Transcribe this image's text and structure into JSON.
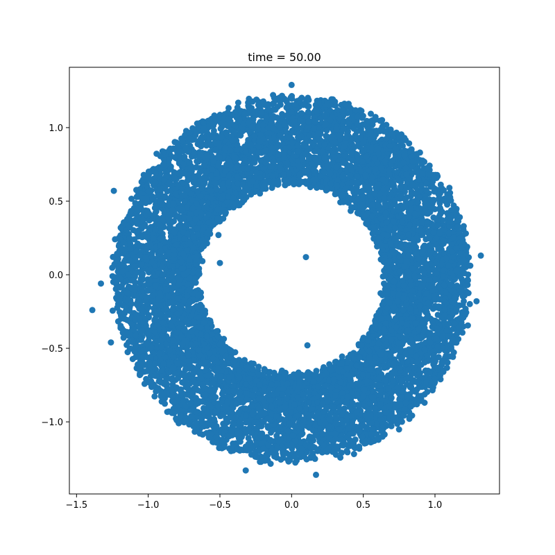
{
  "chart_data": {
    "type": "scatter",
    "title": "time = 50.00",
    "xlabel": "",
    "ylabel": "",
    "xlim": [
      -1.55,
      1.45
    ],
    "ylim": [
      -1.49,
      1.41
    ],
    "grid": false,
    "legend": "none",
    "point_color": "#1f77b4",
    "x_ticks": [
      {
        "value": -1.5,
        "label": "−1.5"
      },
      {
        "value": -1.0,
        "label": "−1.0"
      },
      {
        "value": -0.5,
        "label": "−0.5"
      },
      {
        "value": 0.0,
        "label": "0.0"
      },
      {
        "value": 0.5,
        "label": "0.5"
      },
      {
        "value": 1.0,
        "label": "1.0"
      }
    ],
    "y_ticks": [
      {
        "value": 1.0,
        "label": "1.0"
      },
      {
        "value": 0.5,
        "label": "0.5"
      },
      {
        "value": 0.0,
        "label": "0.0"
      },
      {
        "value": -0.5,
        "label": "−0.5"
      },
      {
        "value": -1.0,
        "label": "−1.0"
      }
    ],
    "distribution": {
      "shape": "annulus",
      "center": [
        0.0,
        -0.03
      ],
      "inner_radius": 0.65,
      "outer_radius": 1.24,
      "point_count": 9000
    },
    "outliers": [
      {
        "x": -1.39,
        "y": -0.24
      },
      {
        "x": -1.33,
        "y": -0.06
      },
      {
        "x": -1.24,
        "y": 0.57
      },
      {
        "x": -1.26,
        "y": -0.46
      },
      {
        "x": -0.32,
        "y": -1.33
      },
      {
        "x": 0.17,
        "y": -1.36
      },
      {
        "x": 1.32,
        "y": 0.13
      },
      {
        "x": 1.29,
        "y": -0.18
      },
      {
        "x": 0.0,
        "y": 1.29
      },
      {
        "x": 0.1,
        "y": 0.12
      },
      {
        "x": -0.51,
        "y": 0.27
      },
      {
        "x": 0.49,
        "y": -0.52
      },
      {
        "x": 0.45,
        "y": 0.63
      },
      {
        "x": 0.11,
        "y": -0.48
      },
      {
        "x": -0.5,
        "y": 0.08
      }
    ]
  }
}
